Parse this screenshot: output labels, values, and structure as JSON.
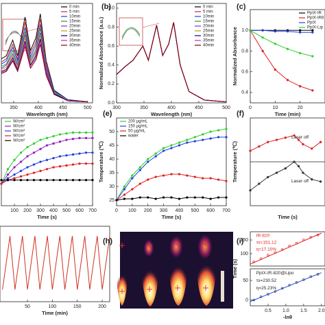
{
  "chart_data": [
    {
      "type": "line",
      "xlabel": "Wavelength (nm)",
      "xlim": [
        325,
        510
      ],
      "ylim": [
        0,
        0.95
      ],
      "xticks": [
        350,
        400,
        450,
        500
      ],
      "legend": "upper right",
      "x": [
        325,
        335,
        348,
        358,
        373,
        384,
        395,
        404,
        416,
        432,
        460,
        500
      ],
      "series": [
        {
          "name": "0 min",
          "color": "#000000",
          "values": [
            0.42,
            0.45,
            0.6,
            0.45,
            0.82,
            0.5,
            0.62,
            0.85,
            0.4,
            0.12,
            0.03,
            0.01
          ]
        },
        {
          "name": "5 min",
          "color": "#e02020",
          "values": [
            0.39,
            0.42,
            0.56,
            0.42,
            0.77,
            0.47,
            0.58,
            0.8,
            0.38,
            0.11,
            0.03,
            0.01
          ]
        },
        {
          "name": "10min",
          "color": "#2040e0",
          "values": [
            0.37,
            0.4,
            0.53,
            0.4,
            0.72,
            0.44,
            0.55,
            0.75,
            0.35,
            0.11,
            0.03,
            0.01
          ]
        },
        {
          "name": "15min",
          "color": "#20a020",
          "values": [
            0.35,
            0.37,
            0.5,
            0.37,
            0.68,
            0.42,
            0.51,
            0.71,
            0.33,
            0.1,
            0.02,
            0.01
          ]
        },
        {
          "name": "20min",
          "color": "#8a2be2",
          "values": [
            0.33,
            0.36,
            0.47,
            0.36,
            0.65,
            0.4,
            0.49,
            0.67,
            0.32,
            0.09,
            0.02,
            0.01
          ]
        },
        {
          "name": "25min",
          "color": "#b8a000",
          "values": [
            0.32,
            0.34,
            0.45,
            0.34,
            0.62,
            0.38,
            0.47,
            0.64,
            0.3,
            0.09,
            0.02,
            0.01
          ]
        },
        {
          "name": "30min",
          "color": "#000080",
          "values": [
            0.3,
            0.32,
            0.43,
            0.32,
            0.59,
            0.36,
            0.45,
            0.61,
            0.29,
            0.09,
            0.02,
            0.01
          ]
        },
        {
          "name": "35min",
          "color": "#d020c0",
          "values": [
            0.29,
            0.31,
            0.41,
            0.31,
            0.57,
            0.35,
            0.43,
            0.59,
            0.28,
            0.08,
            0.02,
            0.01
          ]
        },
        {
          "name": "40min",
          "color": "#800000",
          "values": [
            0.28,
            0.3,
            0.4,
            0.3,
            0.54,
            0.33,
            0.41,
            0.56,
            0.26,
            0.08,
            0.02,
            0.01
          ]
        }
      ]
    },
    {
      "type": "line",
      "panel": "(b)",
      "xlabel": "Wavelength (nm)",
      "ylabel": "Normalized Absorbance (a.u.)",
      "xlim": [
        300,
        500
      ],
      "ylim": [
        0,
        1.05
      ],
      "xticks": [
        300,
        350,
        400,
        450,
        500
      ],
      "yticks": [
        {
          "value": 0,
          "label": "0.0"
        },
        0.2,
        0.4,
        0.6,
        0.8,
        {
          "value": 1,
          "label": "1.0"
        }
      ],
      "legend": "upper right",
      "x": [
        300,
        315,
        330,
        348,
        358,
        373,
        384,
        395,
        404,
        416,
        432,
        460,
        500
      ],
      "series": [
        {
          "name": "0 min",
          "color": "#000000",
          "values": [
            0.3,
            0.38,
            0.45,
            0.6,
            0.45,
            0.82,
            0.5,
            0.62,
            0.85,
            0.4,
            0.12,
            0.03,
            0.01
          ]
        },
        {
          "name": "5 min",
          "color": "#e02020",
          "values": [
            0.3,
            0.38,
            0.45,
            0.6,
            0.45,
            0.82,
            0.5,
            0.62,
            0.85,
            0.4,
            0.12,
            0.03,
            0.01
          ]
        },
        {
          "name": "10min",
          "color": "#2040e0",
          "values": [
            0.3,
            0.38,
            0.45,
            0.6,
            0.45,
            0.82,
            0.5,
            0.62,
            0.85,
            0.4,
            0.12,
            0.03,
            0.01
          ]
        },
        {
          "name": "15min",
          "color": "#20a020",
          "values": [
            0.3,
            0.38,
            0.45,
            0.6,
            0.45,
            0.82,
            0.5,
            0.62,
            0.85,
            0.4,
            0.12,
            0.03,
            0.01
          ]
        },
        {
          "name": "20min",
          "color": "#8a2be2",
          "values": [
            0.3,
            0.38,
            0.45,
            0.6,
            0.45,
            0.82,
            0.5,
            0.62,
            0.85,
            0.4,
            0.12,
            0.03,
            0.01
          ]
        },
        {
          "name": "25min",
          "color": "#b8a000",
          "values": [
            0.3,
            0.38,
            0.45,
            0.6,
            0.45,
            0.82,
            0.5,
            0.62,
            0.85,
            0.4,
            0.12,
            0.03,
            0.01
          ]
        },
        {
          "name": "30min",
          "color": "#000080",
          "values": [
            0.3,
            0.38,
            0.45,
            0.6,
            0.45,
            0.82,
            0.5,
            0.62,
            0.85,
            0.4,
            0.12,
            0.03,
            0.01
          ]
        },
        {
          "name": "35min",
          "color": "#d020c0",
          "values": [
            0.3,
            0.38,
            0.45,
            0.6,
            0.45,
            0.82,
            0.5,
            0.62,
            0.85,
            0.4,
            0.12,
            0.03,
            0.01
          ]
        },
        {
          "name": "40min",
          "color": "#800000",
          "values": [
            0.3,
            0.38,
            0.45,
            0.6,
            0.45,
            0.82,
            0.5,
            0.62,
            0.85,
            0.4,
            0.12,
            0.03,
            0.01
          ]
        }
      ]
    },
    {
      "type": "line",
      "panel": "(c)",
      "xlabel": "Time (min)",
      "ylabel": "Normalized Absorbance",
      "xlim": [
        0,
        30
      ],
      "ylim": [
        0.3,
        1.2
      ],
      "xticks": [
        0,
        10,
        20
      ],
      "yticks": [
        0.4,
        0.6,
        0.8,
        {
          "value": 1,
          "label": "1.0"
        }
      ],
      "legend": "upper right",
      "x": [
        0,
        5,
        10,
        15,
        20,
        25
      ],
      "series": [
        {
          "name": "PpIX-IR",
          "color": "#000000",
          "marker": true,
          "values": [
            1,
            1,
            1,
            1,
            1,
            1
          ]
        },
        {
          "name": "PpIX-IR8",
          "color": "#e02020",
          "marker": true,
          "values": [
            1,
            0.8,
            0.62,
            0.52,
            0.46,
            0.42
          ]
        },
        {
          "name": "PpIX",
          "color": "#2040e0",
          "marker": true,
          "values": [
            1,
            1,
            0.99,
            0.99,
            0.98,
            0.98
          ]
        },
        {
          "name": "PpIX-Lip",
          "color": "#30d030",
          "marker": true,
          "values": [
            1,
            0.93,
            0.87,
            0.82,
            0.78,
            0.75
          ]
        }
      ]
    },
    {
      "type": "line",
      "xlabel": "Time (s)",
      "xlim": [
        0,
        700
      ],
      "ylim": [
        13,
        61
      ],
      "xticks": [
        100,
        200,
        300,
        400,
        500,
        600,
        700
      ],
      "legend": "upper left",
      "x": [
        0,
        50,
        100,
        150,
        200,
        250,
        300,
        350,
        400,
        450,
        500,
        550,
        600,
        650,
        700
      ],
      "series": [
        {
          "name": "W/cm²",
          "color": "#30d030",
          "marker": true,
          "values": [
            25,
            33,
            38,
            42,
            45,
            47,
            49,
            50,
            51,
            52,
            52.5,
            53,
            53,
            53,
            53
          ]
        },
        {
          "name": "W/cm²",
          "color": "#9020c0",
          "marker": true,
          "values": [
            25,
            30,
            34,
            37,
            40,
            42,
            44,
            46,
            47,
            48,
            49,
            49.5,
            50,
            50,
            50
          ]
        },
        {
          "name": "W/cm²",
          "color": "#2040e0",
          "marker": true,
          "values": [
            25,
            28,
            30,
            32,
            34,
            35.5,
            37,
            38,
            39,
            40,
            40.5,
            41,
            41.5,
            42,
            42
          ]
        },
        {
          "name": "W/cm²",
          "color": "#e02020",
          "marker": true,
          "values": [
            25,
            27,
            28,
            29,
            30,
            31,
            32,
            33,
            34,
            34.5,
            35,
            35.5,
            36,
            36,
            36
          ]
        },
        {
          "name": "W/cm²",
          "color": "#000000",
          "marker": true,
          "values": [
            27,
            27,
            27,
            27,
            27,
            27,
            27,
            27,
            27,
            27,
            27,
            27,
            27,
            27,
            27
          ]
        }
      ]
    },
    {
      "type": "line",
      "panel": "(e)",
      "xlabel": "Time (s)",
      "ylabel": "Temperature (℃)",
      "xlim": [
        0,
        700
      ],
      "ylim": [
        23,
        55
      ],
      "xticks": [
        0,
        100,
        200,
        300,
        400,
        500,
        600,
        700
      ],
      "yticks": [
        25,
        30,
        35,
        40,
        45,
        50
      ],
      "legend": "upper left",
      "x": [
        0,
        50,
        100,
        150,
        200,
        250,
        300,
        350,
        400,
        450,
        500,
        550,
        600,
        650,
        700
      ],
      "series": [
        {
          "name": "200 μg/mL",
          "color": "#30d030",
          "marker": true,
          "values": [
            25,
            30,
            34,
            37,
            40,
            42,
            44,
            45,
            46,
            47,
            48,
            49,
            50,
            50.5,
            51
          ]
        },
        {
          "name": "150 μg/mL",
          "color": "#2040e0",
          "marker": true,
          "values": [
            25,
            29,
            33,
            36,
            39,
            41,
            43,
            44,
            45,
            46,
            46.5,
            47,
            47.5,
            48,
            48
          ]
        },
        {
          "name": "50 μg/mL",
          "color": "#e02020",
          "marker": true,
          "values": [
            25,
            27,
            29,
            31,
            32.5,
            33.5,
            34,
            34.5,
            34.5,
            34,
            33.5,
            33,
            33,
            32.5,
            32
          ]
        },
        {
          "name": "water",
          "color": "#000000",
          "marker": true,
          "values": [
            25,
            25.5,
            25.5,
            26,
            26,
            25.5,
            26,
            26,
            25.5,
            26,
            26,
            26,
            25.5,
            26,
            26
          ]
        }
      ]
    },
    {
      "type": "line",
      "panel": "(f)",
      "xlabel": "Time (s)",
      "ylabel": "Temperature (℃)",
      "xlim": [
        0,
        850
      ],
      "ylim": [
        15,
        55
      ],
      "annotations": [
        "Laser off",
        "Laser off"
      ],
      "x": [
        0,
        100,
        200,
        300,
        400,
        500,
        550,
        600,
        700,
        800
      ],
      "series": [
        {
          "color": "#e02020",
          "marker": true,
          "values": [
            40,
            42,
            44,
            45,
            46,
            47,
            45,
            43,
            41,
            44
          ]
        },
        {
          "color": "#333333",
          "marker": true,
          "values": [
            22,
            25,
            28,
            30,
            32,
            35,
            33,
            30,
            27,
            26
          ]
        }
      ]
    },
    {
      "type": "line",
      "xlabel": "Time (min)",
      "xlim": [
        -5,
        215
      ],
      "ylim": [
        25,
        56
      ],
      "xticks": [
        50,
        100,
        150,
        200
      ],
      "x": [
        0,
        15,
        25,
        40,
        50,
        65,
        75,
        90,
        100,
        115,
        125,
        140,
        150,
        165,
        175,
        190,
        200,
        215
      ],
      "series": [
        {
          "color": "#d03020",
          "values": [
            30,
            52,
            30,
            52,
            30,
            52,
            30,
            52,
            30,
            52,
            30,
            52,
            30,
            52,
            30,
            52,
            30,
            52
          ]
        }
      ]
    },
    {
      "type": "image",
      "panel": "(h)"
    },
    {
      "type": "scatter",
      "panel": "(i)",
      "xlim": [
        0,
        2.1
      ],
      "ylim": [
        55,
        180
      ],
      "yticks": [
        100,
        150
      ],
      "annotations": [
        "IR-820",
        "τs=151.12",
        "η=17.10%"
      ],
      "series": [
        {
          "color": "#e02020",
          "style": "points",
          "x": [
            0.1,
            0.3,
            0.5,
            0.7,
            0.9,
            1.1,
            1.3,
            1.5,
            1.7,
            1.9
          ],
          "values": [
            70,
            82,
            95,
            104,
            115,
            128,
            138,
            150,
            160,
            168
          ]
        },
        {
          "color": "#e02020",
          "x": [
            0,
            2.0
          ],
          "values": [
            62,
            175
          ]
        }
      ]
    },
    {
      "type": "scatter",
      "xlabel": "-lnθ",
      "ylabel": "Time (s)",
      "xlim": [
        0,
        2.1
      ],
      "ylim": [
        -15,
        80
      ],
      "xticks": [
        0.5,
        {
          "value": 1,
          "label": "1.0"
        },
        1.5,
        {
          "value": 2,
          "label": "2.0"
        }
      ],
      "yticks": [
        0,
        50
      ],
      "annotations": [
        "PpIX-IR-820@Lipo",
        "τs=230.52",
        "η=25.23%"
      ],
      "series": [
        {
          "color": "#333333",
          "style": "points",
          "x": [
            0.1,
            0.3,
            0.5,
            0.7,
            0.9,
            1.1,
            1.3,
            1.5,
            1.7,
            1.9
          ],
          "values": [
            0,
            8,
            15,
            22,
            30,
            38,
            45,
            52,
            60,
            66
          ]
        },
        {
          "color": "#2040e0",
          "x": [
            0,
            2.0
          ],
          "values": [
            -4,
            70
          ]
        }
      ]
    }
  ]
}
